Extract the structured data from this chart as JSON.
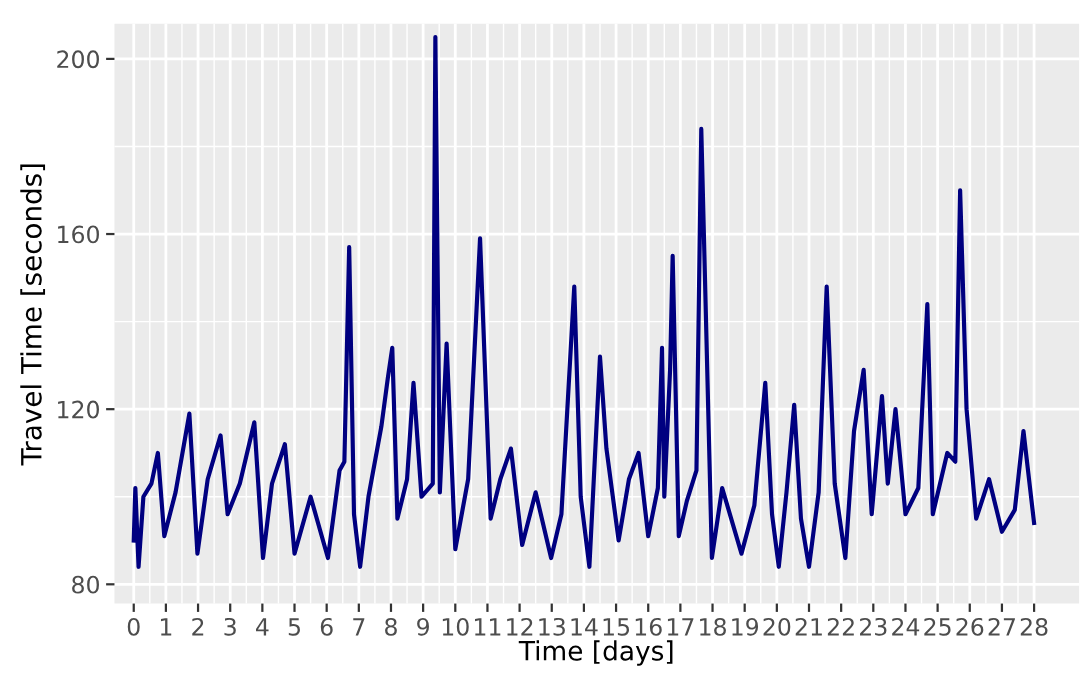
{
  "chart_data": {
    "type": "line",
    "xlabel": "Time [days]",
    "ylabel": "Travel Time [seconds]",
    "xlim": [
      -0.6,
      29.4
    ],
    "ylim": [
      75.6,
      208
    ],
    "xticks": [
      0,
      1,
      2,
      3,
      4,
      5,
      6,
      7,
      8,
      9,
      10,
      11,
      12,
      13,
      14,
      15,
      16,
      17,
      18,
      19,
      20,
      21,
      22,
      23,
      24,
      25,
      26,
      27,
      28
    ],
    "yticks": [
      80,
      120,
      160,
      200
    ],
    "grid": true,
    "line_style": "solid",
    "marker": "none",
    "series": [
      {
        "color": "#000080",
        "x": [
          0,
          0.05,
          0.15,
          0.3,
          0.55,
          0.75,
          0.95,
          1.3,
          1.73,
          1.98,
          2.3,
          2.7,
          2.92,
          3.3,
          3.75,
          4.02,
          4.3,
          4.7,
          5.0,
          5.5,
          6.04,
          6.4,
          6.55,
          6.7,
          6.85,
          7.04,
          7.3,
          7.7,
          7.9,
          8.04,
          8.2,
          8.5,
          8.7,
          8.95,
          9.3,
          9.38,
          9.52,
          9.73,
          10.0,
          10.4,
          10.77,
          11.1,
          11.4,
          11.73,
          12.08,
          12.5,
          12.98,
          13.3,
          13.7,
          13.9,
          14.17,
          14.5,
          14.7,
          15.08,
          15.4,
          15.7,
          16.0,
          16.3,
          16.43,
          16.5,
          16.68,
          16.76,
          16.95,
          17.2,
          17.5,
          17.65,
          17.98,
          18.3,
          18.9,
          19.3,
          19.64,
          19.85,
          20.06,
          20.3,
          20.54,
          20.75,
          21.0,
          21.3,
          21.55,
          21.8,
          22.13,
          22.4,
          22.7,
          22.95,
          23.27,
          23.45,
          23.69,
          24.0,
          24.4,
          24.68,
          24.85,
          25.3,
          25.55,
          25.7,
          25.9,
          26.2,
          26.6,
          27.0,
          27.4,
          27.67,
          28.0
        ],
        "values": [
          90,
          102,
          84,
          100,
          103,
          110,
          91,
          101,
          119,
          87,
          104,
          114,
          96,
          103,
          117,
          86,
          103,
          112,
          87,
          100,
          86,
          106,
          108,
          157,
          96,
          84,
          100,
          116,
          127,
          134,
          95,
          104,
          126,
          100,
          103,
          205,
          101,
          135,
          88,
          104,
          159,
          95,
          104,
          111,
          89,
          101,
          86,
          96,
          148,
          100,
          84,
          132,
          111,
          90,
          104,
          110,
          91,
          102,
          134,
          100,
          129,
          155,
          91,
          99,
          106,
          184,
          86,
          102,
          87,
          98,
          126,
          96,
          84,
          101,
          121,
          95,
          84,
          101,
          148,
          103,
          86,
          115,
          129,
          96,
          123,
          103,
          120,
          96,
          102,
          144,
          96,
          110,
          108,
          170,
          120,
          95,
          104,
          92,
          97,
          115,
          94
        ]
      }
    ]
  }
}
